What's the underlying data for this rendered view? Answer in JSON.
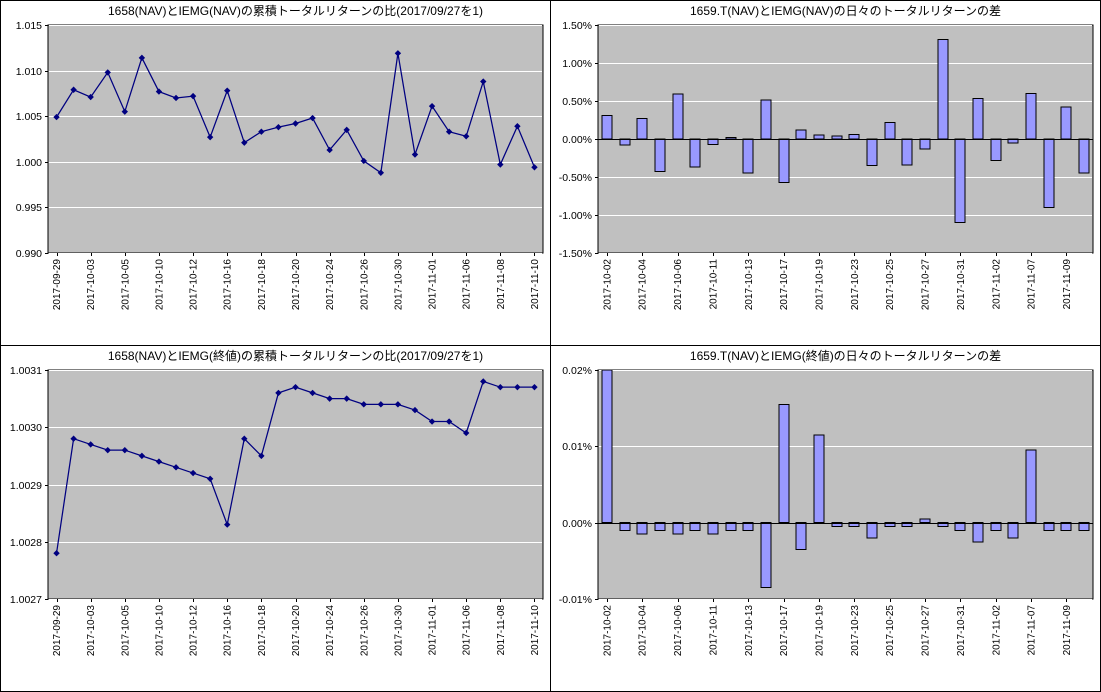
{
  "colors": {
    "page_bg": "#FFFFFF",
    "plot_bg": "#C0C0C0",
    "gridline": "#FFFFFF",
    "line_series": "#000080",
    "bar_fill": "#9999FF",
    "bar_stroke": "#000000",
    "axis": "#000000",
    "text": "#000000"
  },
  "chart_data": [
    {
      "id": "cumulative-return-ratio-nav",
      "type": "line",
      "title": "1658(NAV)とIEMG(NAV)の累積トータルリターンの比(2017/09/27を1)",
      "ylim": [
        0.99,
        1.015
      ],
      "y_tick_values": [
        0.99,
        0.995,
        1.0,
        1.005,
        1.01,
        1.015
      ],
      "y_tick_labels": [
        "0.990",
        "0.995",
        "1.000",
        "1.005",
        "1.010",
        "1.015"
      ],
      "label_every": 2,
      "grid": true,
      "legend": "none",
      "categories": [
        "2017-09-29",
        "2017-10-02",
        "2017-10-03",
        "2017-10-04",
        "2017-10-05",
        "2017-10-06",
        "2017-10-10",
        "2017-10-11",
        "2017-10-12",
        "2017-10-13",
        "2017-10-16",
        "2017-10-17",
        "2017-10-18",
        "2017-10-19",
        "2017-10-20",
        "2017-10-23",
        "2017-10-24",
        "2017-10-25",
        "2017-10-26",
        "2017-10-27",
        "2017-10-30",
        "2017-10-31",
        "2017-11-01",
        "2017-11-02",
        "2017-11-06",
        "2017-11-07",
        "2017-11-08",
        "2017-11-09",
        "2017-11-10"
      ],
      "values": [
        1.0049,
        1.0079,
        1.0071,
        1.0098,
        1.0055,
        1.0114,
        1.0077,
        1.007,
        1.0072,
        1.0027,
        1.0078,
        1.0021,
        1.0033,
        1.0038,
        1.0042,
        1.0048,
        1.0013,
        1.0035,
        1.0001,
        0.9988,
        1.0119,
        1.0008,
        1.0061,
        1.0033,
        1.0028,
        1.0088,
        0.9997,
        1.0039,
        0.9994
      ]
    },
    {
      "id": "daily-return-diff-nav",
      "type": "bar",
      "title": "1659.T(NAV)とIEMG(NAV)の日々のトータルリターンの差",
      "unit": "%",
      "ylim": [
        -1.5,
        1.5
      ],
      "y_tick_values": [
        -1.5,
        -1.0,
        -0.5,
        0.0,
        0.5,
        1.0,
        1.5
      ],
      "y_tick_labels": [
        "-1.50%",
        "-1.00%",
        "-0.50%",
        "0.00%",
        "0.50%",
        "1.00%",
        "1.50%"
      ],
      "label_every": 2,
      "grid": true,
      "legend": "none",
      "categories": [
        "2017-10-02",
        "2017-10-03",
        "2017-10-04",
        "2017-10-05",
        "2017-10-06",
        "2017-10-10",
        "2017-10-11",
        "2017-10-12",
        "2017-10-13",
        "2017-10-16",
        "2017-10-17",
        "2017-10-18",
        "2017-10-19",
        "2017-10-20",
        "2017-10-23",
        "2017-10-24",
        "2017-10-25",
        "2017-10-26",
        "2017-10-27",
        "2017-10-30",
        "2017-10-31",
        "2017-11-01",
        "2017-11-02",
        "2017-11-06",
        "2017-11-07",
        "2017-11-08",
        "2017-11-09",
        "2017-11-10"
      ],
      "values": [
        0.31,
        -0.08,
        0.27,
        -0.43,
        0.59,
        -0.37,
        -0.07,
        0.02,
        -0.45,
        0.51,
        -0.57,
        0.12,
        0.05,
        0.04,
        0.06,
        -0.35,
        0.22,
        -0.34,
        -0.13,
        1.31,
        -1.1,
        0.53,
        -0.28,
        -0.05,
        0.6,
        -0.9,
        0.42,
        -0.45
      ]
    },
    {
      "id": "cumulative-return-ratio-close",
      "type": "line",
      "title": "1658(NAV)とIEMG(終値)の累積トータルリターンの比(2017/09/27を1)",
      "ylim": [
        1.0027,
        1.0031
      ],
      "y_tick_values": [
        1.0027,
        1.0028,
        1.0029,
        1.003,
        1.0031
      ],
      "y_tick_labels": [
        "1.0027",
        "1.0028",
        "1.0029",
        "1.0030",
        "1.0031"
      ],
      "label_every": 2,
      "grid": true,
      "legend": "none",
      "categories": [
        "2017-09-29",
        "2017-10-02",
        "2017-10-03",
        "2017-10-04",
        "2017-10-05",
        "2017-10-06",
        "2017-10-10",
        "2017-10-11",
        "2017-10-12",
        "2017-10-13",
        "2017-10-16",
        "2017-10-17",
        "2017-10-18",
        "2017-10-19",
        "2017-10-20",
        "2017-10-23",
        "2017-10-24",
        "2017-10-25",
        "2017-10-26",
        "2017-10-27",
        "2017-10-30",
        "2017-10-31",
        "2017-11-01",
        "2017-11-02",
        "2017-11-06",
        "2017-11-07",
        "2017-11-08",
        "2017-11-09",
        "2017-11-10"
      ],
      "values": [
        1.00278,
        1.00298,
        1.00297,
        1.00296,
        1.00296,
        1.00295,
        1.00294,
        1.00293,
        1.00292,
        1.00291,
        1.00283,
        1.00298,
        1.00295,
        1.00306,
        1.00307,
        1.00306,
        1.00305,
        1.00305,
        1.00304,
        1.00304,
        1.00304,
        1.00303,
        1.00301,
        1.00301,
        1.00299,
        1.00308,
        1.00307,
        1.00307,
        1.00307
      ]
    },
    {
      "id": "daily-return-diff-close",
      "type": "bar",
      "title": "1659.T(NAV)とIEMG(終値)の日々のトータルリターンの差",
      "unit": "%",
      "ylim": [
        -0.01,
        0.02
      ],
      "y_tick_values": [
        -0.01,
        0.0,
        0.01,
        0.02
      ],
      "y_tick_labels": [
        "-0.01%",
        "0.00%",
        "0.01%",
        "0.02%"
      ],
      "label_every": 2,
      "grid": true,
      "legend": "none",
      "categories": [
        "2017-10-02",
        "2017-10-03",
        "2017-10-04",
        "2017-10-05",
        "2017-10-06",
        "2017-10-10",
        "2017-10-11",
        "2017-10-12",
        "2017-10-13",
        "2017-10-16",
        "2017-10-17",
        "2017-10-18",
        "2017-10-19",
        "2017-10-20",
        "2017-10-23",
        "2017-10-24",
        "2017-10-25",
        "2017-10-26",
        "2017-10-27",
        "2017-10-30",
        "2017-10-31",
        "2017-11-01",
        "2017-11-02",
        "2017-11-06",
        "2017-11-07",
        "2017-11-08",
        "2017-11-09",
        "2017-11-10"
      ],
      "values": [
        0.02,
        -0.001,
        -0.0015,
        -0.001,
        -0.0015,
        -0.001,
        -0.0015,
        -0.001,
        -0.001,
        -0.0085,
        0.0155,
        -0.0035,
        0.0115,
        -0.0005,
        -0.0005,
        -0.002,
        -0.0005,
        -0.0005,
        0.0005,
        -0.0005,
        -0.001,
        -0.0025,
        -0.001,
        -0.002,
        0.0095,
        -0.001,
        -0.001,
        -0.001
      ]
    }
  ]
}
